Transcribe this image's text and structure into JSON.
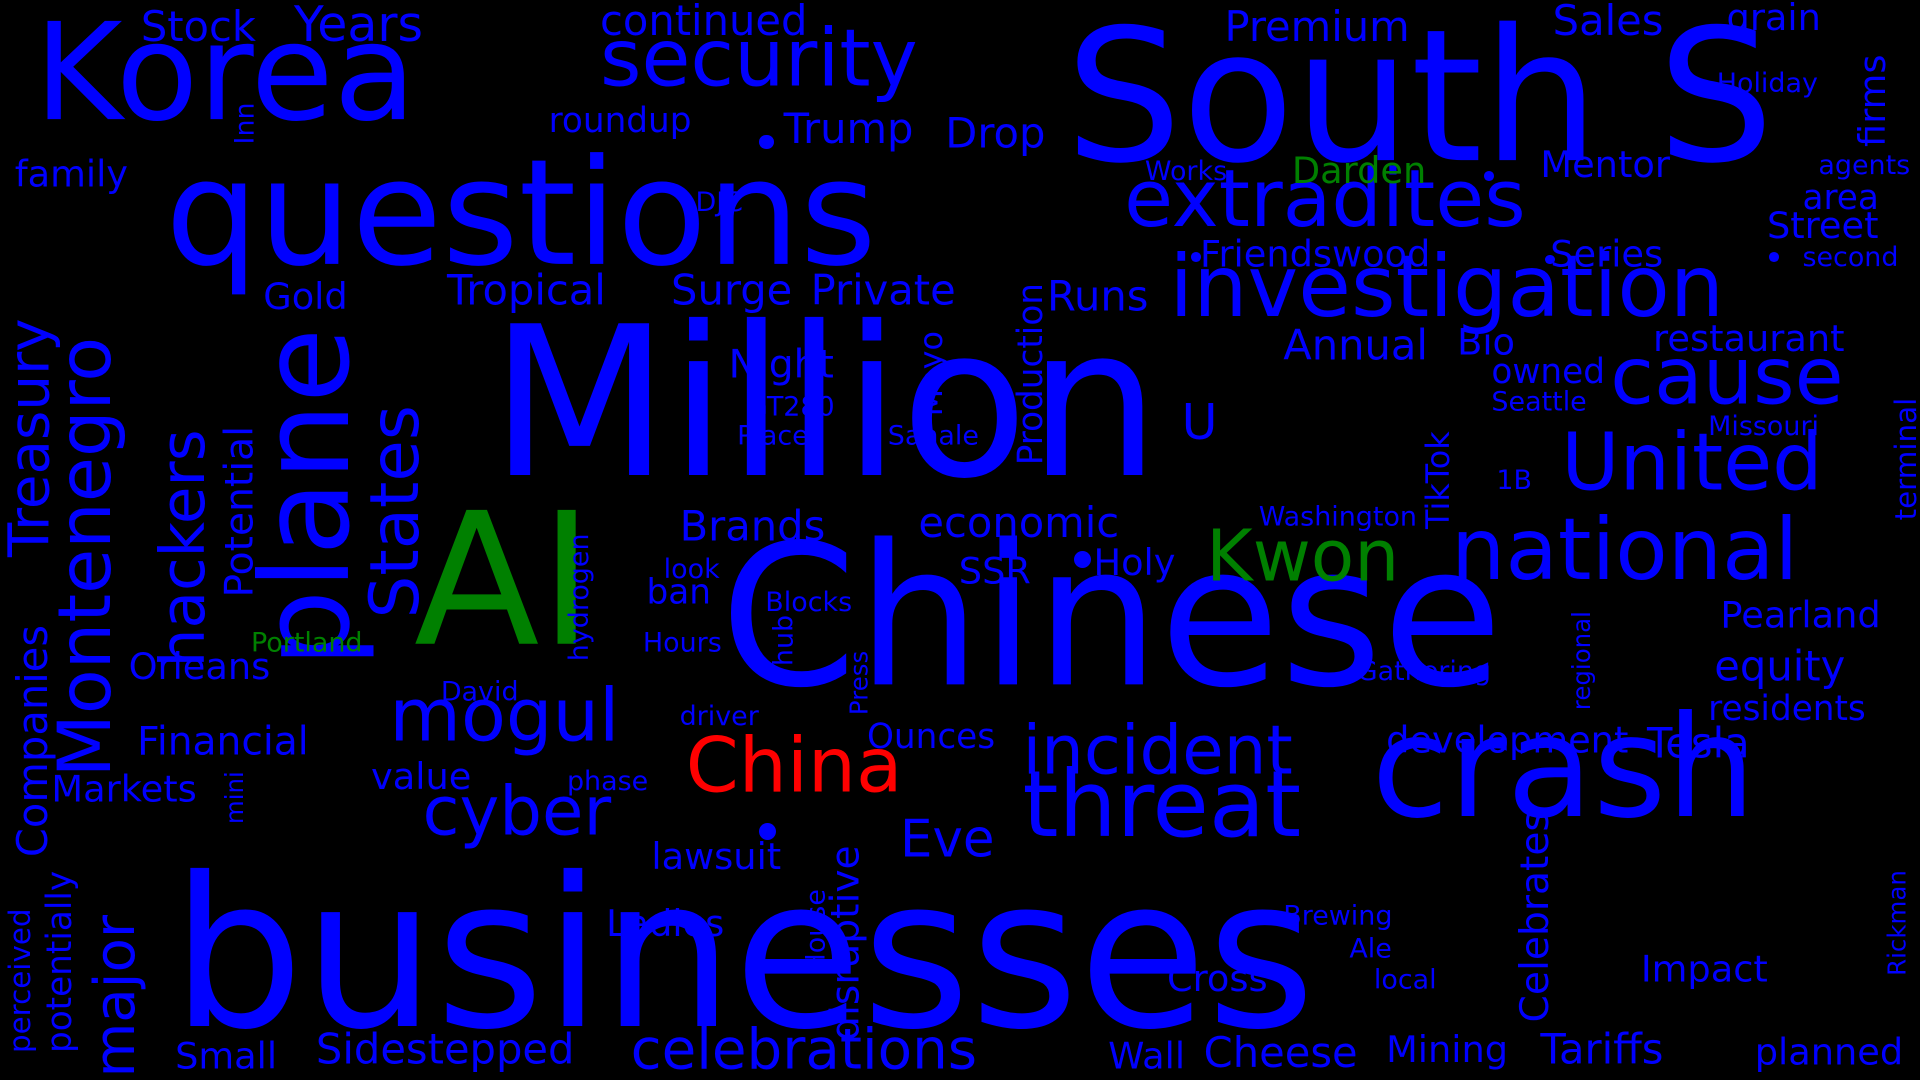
{
  "colors": {
    "background": "#000000",
    "blue": "#0000ff",
    "green": "#008000",
    "red": "#ff0000"
  },
  "words": [
    {
      "text": "businesses",
      "color": "blue",
      "rotated": false
    },
    {
      "text": "Chinese",
      "color": "blue",
      "rotated": false
    },
    {
      "text": "Million",
      "color": "blue",
      "rotated": false
    },
    {
      "text": "AI",
      "color": "green",
      "rotated": false
    },
    {
      "text": "South S",
      "color": "blue",
      "rotated": false
    },
    {
      "text": "questions",
      "color": "blue",
      "rotated": false
    },
    {
      "text": "crash",
      "color": "blue",
      "rotated": false
    },
    {
      "text": "Korea",
      "color": "blue",
      "rotated": false
    },
    {
      "text": "plane",
      "color": "blue",
      "rotated": true
    },
    {
      "text": "investigation",
      "color": "blue",
      "rotated": false
    },
    {
      "text": "threat",
      "color": "blue",
      "rotated": false
    },
    {
      "text": "national",
      "color": "blue",
      "rotated": false
    },
    {
      "text": "extradites",
      "color": "blue",
      "rotated": false
    },
    {
      "text": "Montenegro",
      "color": "blue",
      "rotated": true
    },
    {
      "text": "United",
      "color": "blue",
      "rotated": false
    },
    {
      "text": "cause",
      "color": "blue",
      "rotated": false
    },
    {
      "text": "security",
      "color": "blue",
      "rotated": false
    },
    {
      "text": "hackers",
      "color": "blue",
      "rotated": true
    },
    {
      "text": "States",
      "color": "blue",
      "rotated": true
    },
    {
      "text": "mogul",
      "color": "blue",
      "rotated": false
    },
    {
      "text": "incident",
      "color": "blue",
      "rotated": false
    },
    {
      "text": "cyber",
      "color": "blue",
      "rotated": false
    },
    {
      "text": "celebrations",
      "color": "blue",
      "rotated": false
    },
    {
      "text": "Treasury",
      "color": "blue",
      "rotated": true
    },
    {
      "text": "China",
      "color": "red",
      "rotated": false
    },
    {
      "text": "Kwon",
      "color": "green",
      "rotated": false
    },
    {
      "text": "major",
      "color": "blue",
      "rotated": true
    },
    {
      "text": "Eve",
      "color": "blue",
      "rotated": false
    },
    {
      "text": "Years",
      "color": "blue",
      "rotated": false
    },
    {
      "text": "U",
      "color": "blue",
      "rotated": false
    },
    {
      "text": "Companies",
      "color": "blue",
      "rotated": true
    },
    {
      "text": "economic",
      "color": "blue",
      "rotated": false
    },
    {
      "text": "Tropical",
      "color": "blue",
      "rotated": false
    },
    {
      "text": "Surge",
      "color": "blue",
      "rotated": false
    },
    {
      "text": "Private",
      "color": "blue",
      "rotated": false
    },
    {
      "text": "Trump",
      "color": "blue",
      "rotated": false
    },
    {
      "text": "Drop",
      "color": "blue",
      "rotated": false
    },
    {
      "text": "continued",
      "color": "blue",
      "rotated": false
    },
    {
      "text": "Premium",
      "color": "blue",
      "rotated": false
    },
    {
      "text": "Stock",
      "color": "blue",
      "rotated": false
    },
    {
      "text": "Sales",
      "color": "blue",
      "rotated": false
    },
    {
      "text": "grain",
      "color": "blue",
      "rotated": false
    },
    {
      "text": "firms",
      "color": "blue",
      "rotated": true
    },
    {
      "text": "Holiday",
      "color": "blue",
      "rotated": false
    },
    {
      "text": "roundup",
      "color": "blue",
      "rotated": false
    },
    {
      "text": "Inn",
      "color": "blue",
      "rotated": true
    },
    {
      "text": "family",
      "color": "blue",
      "rotated": false
    },
    {
      "text": "DJC",
      "color": "blue",
      "rotated": false
    },
    {
      "text": "Works",
      "color": "blue",
      "rotated": false
    },
    {
      "text": "Darden",
      "color": "green",
      "rotated": false
    },
    {
      "text": "Mentor",
      "color": "blue",
      "rotated": false
    },
    {
      "text": "agents",
      "color": "blue",
      "rotated": false
    },
    {
      "text": "area",
      "color": "blue",
      "rotated": false
    },
    {
      "text": "Street",
      "color": "blue",
      "rotated": false
    },
    {
      "text": "Friendswood",
      "color": "blue",
      "rotated": false
    },
    {
      "text": "Series",
      "color": "blue",
      "rotated": false
    },
    {
      "text": "second",
      "color": "blue",
      "rotated": false
    },
    {
      "text": "Gold",
      "color": "blue",
      "rotated": false
    },
    {
      "text": "Runs",
      "color": "blue",
      "rotated": false
    },
    {
      "text": "Production",
      "color": "blue",
      "rotated": true
    },
    {
      "text": "restaurant",
      "color": "blue",
      "rotated": false
    },
    {
      "text": "terminal",
      "color": "blue",
      "rotated": true
    },
    {
      "text": "Annual",
      "color": "blue",
      "rotated": false
    },
    {
      "text": "Bio",
      "color": "blue",
      "rotated": false
    },
    {
      "text": "owned",
      "color": "blue",
      "rotated": false
    },
    {
      "text": "Night",
      "color": "blue",
      "rotated": false
    },
    {
      "text": "Seattle",
      "color": "blue",
      "rotated": false
    },
    {
      "text": "GT280",
      "color": "blue",
      "rotated": false
    },
    {
      "text": "Mayo",
      "color": "blue",
      "rotated": true
    },
    {
      "text": "Missouri",
      "color": "blue",
      "rotated": false
    },
    {
      "text": "Place",
      "color": "blue",
      "rotated": false
    },
    {
      "text": "Sahale",
      "color": "blue",
      "rotated": false
    },
    {
      "text": "TikTok",
      "color": "blue",
      "rotated": true
    },
    {
      "text": "1B",
      "color": "blue",
      "rotated": false
    },
    {
      "text": "Potential",
      "color": "blue",
      "rotated": true
    },
    {
      "text": "Brands",
      "color": "blue",
      "rotated": false
    },
    {
      "text": "Washington",
      "color": "blue",
      "rotated": false
    },
    {
      "text": "Holy",
      "color": "blue",
      "rotated": false
    },
    {
      "text": "SSR",
      "color": "blue",
      "rotated": false
    },
    {
      "text": "hydrogen",
      "color": "blue",
      "rotated": true
    },
    {
      "text": "look",
      "color": "blue",
      "rotated": false
    },
    {
      "text": "ban",
      "color": "blue",
      "rotated": false
    },
    {
      "text": "Blocks",
      "color": "blue",
      "rotated": false
    },
    {
      "text": "regional",
      "color": "blue",
      "rotated": true
    },
    {
      "text": "Pearland",
      "color": "blue",
      "rotated": false
    },
    {
      "text": "Portland",
      "color": "green",
      "rotated": false
    },
    {
      "text": "Hours",
      "color": "blue",
      "rotated": false
    },
    {
      "text": "hub",
      "color": "blue",
      "rotated": true
    },
    {
      "text": "Press",
      "color": "blue",
      "rotated": true
    },
    {
      "text": "Gathering",
      "color": "blue",
      "rotated": false
    },
    {
      "text": "equity",
      "color": "blue",
      "rotated": false
    },
    {
      "text": "Orleans",
      "color": "blue",
      "rotated": false
    },
    {
      "text": "David",
      "color": "blue",
      "rotated": false
    },
    {
      "text": "driver",
      "color": "blue",
      "rotated": false
    },
    {
      "text": "residents",
      "color": "blue",
      "rotated": false
    },
    {
      "text": "Financial",
      "color": "blue",
      "rotated": false
    },
    {
      "text": "Ounces",
      "color": "blue",
      "rotated": false
    },
    {
      "text": "development",
      "color": "blue",
      "rotated": false
    },
    {
      "text": "Tesla",
      "color": "blue",
      "rotated": false
    },
    {
      "text": "value",
      "color": "blue",
      "rotated": false
    },
    {
      "text": "Markets",
      "color": "blue",
      "rotated": false
    },
    {
      "text": "mini",
      "color": "blue",
      "rotated": true
    },
    {
      "text": "phase",
      "color": "blue",
      "rotated": false
    },
    {
      "text": "perceived",
      "color": "blue",
      "rotated": true
    },
    {
      "text": "potentially",
      "color": "blue",
      "rotated": true
    },
    {
      "text": "lawsuit",
      "color": "blue",
      "rotated": false
    },
    {
      "text": "disruptive",
      "color": "blue",
      "rotated": true
    },
    {
      "text": "Celebrates",
      "color": "blue",
      "rotated": true
    },
    {
      "text": "Ladies",
      "color": "blue",
      "rotated": false
    },
    {
      "text": "House",
      "color": "blue",
      "rotated": true
    },
    {
      "text": "Brewing",
      "color": "blue",
      "rotated": false
    },
    {
      "text": "Ale",
      "color": "blue",
      "rotated": false
    },
    {
      "text": "Impact",
      "color": "blue",
      "rotated": false
    },
    {
      "text": "Rickman",
      "color": "blue",
      "rotated": true
    },
    {
      "text": "Cross",
      "color": "blue",
      "rotated": false
    },
    {
      "text": "local",
      "color": "blue",
      "rotated": false
    },
    {
      "text": "Small",
      "color": "blue",
      "rotated": false
    },
    {
      "text": "Sidestepped",
      "color": "blue",
      "rotated": false
    },
    {
      "text": "Wall",
      "color": "blue",
      "rotated": false
    },
    {
      "text": "Cheese",
      "color": "blue",
      "rotated": false
    },
    {
      "text": "Mining",
      "color": "blue",
      "rotated": false
    },
    {
      "text": "Tariffs",
      "color": "blue",
      "rotated": false
    },
    {
      "text": "planned",
      "color": "blue",
      "rotated": false
    }
  ],
  "dots": [
    {
      "color": "blue"
    },
    {
      "color": "blue"
    },
    {
      "color": "blue"
    },
    {
      "color": "blue"
    },
    {
      "color": "blue"
    },
    {
      "color": "blue"
    },
    {
      "color": "blue"
    }
  ]
}
